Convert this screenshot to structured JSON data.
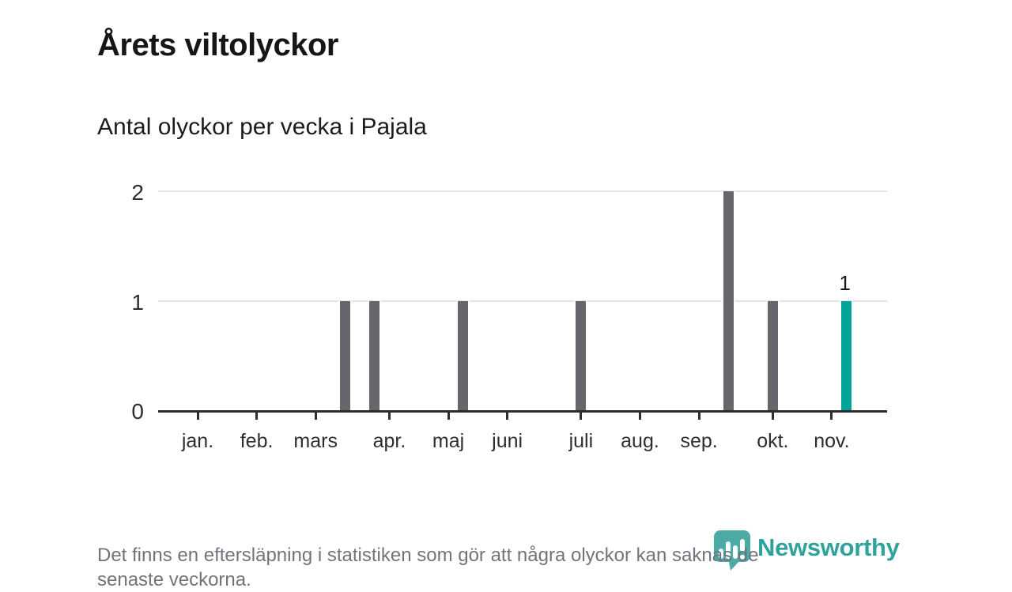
{
  "header": {
    "title": "Årets viltolyckor",
    "subtitle": "Antal olyckor per vecka i Pajala"
  },
  "chart_data": {
    "type": "bar",
    "title": "Årets viltolyckor",
    "subtitle": "Antal olyckor per vecka i Pajala",
    "x_unit": "week of year",
    "ylim": [
      0,
      2
    ],
    "yticks": [
      0,
      1,
      2
    ],
    "grid": "horizontal gridlines at 1 and 2",
    "legend": "none",
    "month_ticks": [
      {
        "label": "jan.",
        "week": 2
      },
      {
        "label": "feb.",
        "week": 6
      },
      {
        "label": "mars",
        "week": 10
      },
      {
        "label": "apr.",
        "week": 15
      },
      {
        "label": "maj",
        "week": 19
      },
      {
        "label": "juni",
        "week": 23
      },
      {
        "label": "juli",
        "week": 28
      },
      {
        "label": "aug.",
        "week": 32
      },
      {
        "label": "sep.",
        "week": 36
      },
      {
        "label": "okt.",
        "week": 41
      },
      {
        "label": "nov.",
        "week": 45
      }
    ],
    "series": [
      {
        "name": "Olyckor per vecka",
        "points": [
          {
            "week": 12,
            "value": 1
          },
          {
            "week": 14,
            "value": 1
          },
          {
            "week": 20,
            "value": 1
          },
          {
            "week": 28,
            "value": 1
          },
          {
            "week": 38,
            "value": 2
          },
          {
            "week": 41,
            "value": 1
          },
          {
            "week": 46,
            "value": 1,
            "highlight": true,
            "label": "1"
          }
        ]
      }
    ],
    "colors": {
      "bar": "#68656c",
      "highlight": "#00a498",
      "gridline": "#e4e4e4",
      "axis": "#2d2d2d"
    }
  },
  "footnote": {
    "lines": [
      "Det finns en eftersläpning i statistiken som gör att några olyckor kan saknas de",
      "senaste veckorna."
    ]
  },
  "logo": {
    "wordmark": "Newsworthy",
    "icon": "newsworthy-speech-bubble-barchart-icon",
    "color": "#2ea39b"
  }
}
